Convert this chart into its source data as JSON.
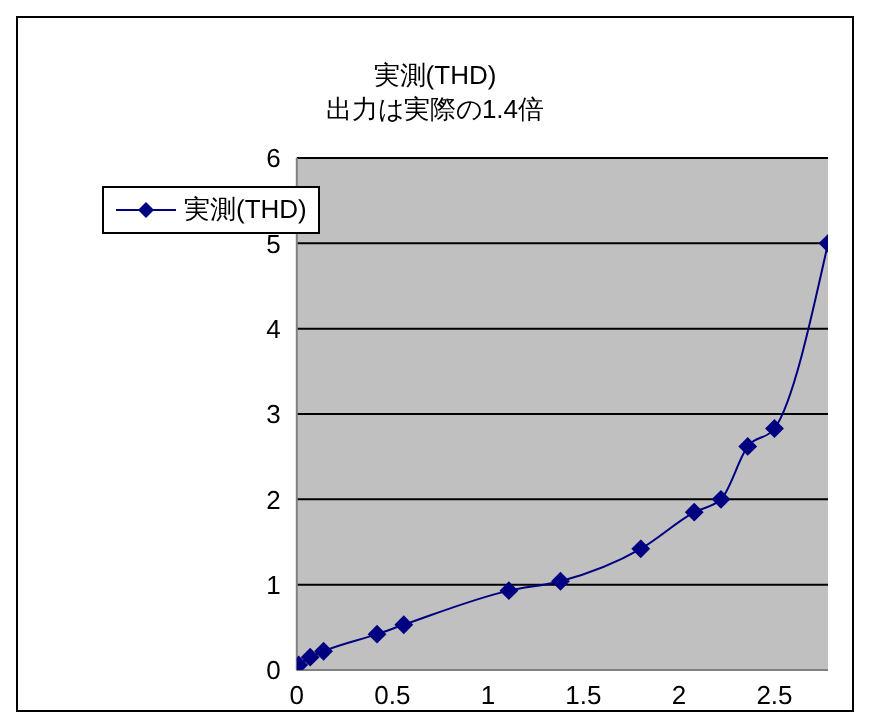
{
  "chart_data": {
    "type": "line",
    "title": "実測(THD)",
    "subtitle": "出力は実際の1.4倍",
    "x": [
      0.01,
      0.07,
      0.14,
      0.42,
      0.56,
      1.11,
      1.38,
      1.8,
      2.08,
      2.22,
      2.36,
      2.5,
      2.78
    ],
    "series": [
      {
        "name": "実測(THD)",
        "color": "#000080",
        "values": [
          0.06,
          0.15,
          0.22,
          0.42,
          0.53,
          0.93,
          1.04,
          1.42,
          1.85,
          2.0,
          2.62,
          2.83,
          5.0
        ]
      }
    ],
    "xlim": [
      0,
      2.78
    ],
    "xticks": [
      0,
      0.5,
      1,
      1.5,
      2,
      2.5
    ],
    "ylim": [
      0,
      6
    ],
    "yticks": [
      0,
      1,
      2,
      3,
      4,
      5,
      6
    ],
    "grid": "y",
    "legend": "top left",
    "marker": "diamond",
    "line_style": "solid"
  }
}
